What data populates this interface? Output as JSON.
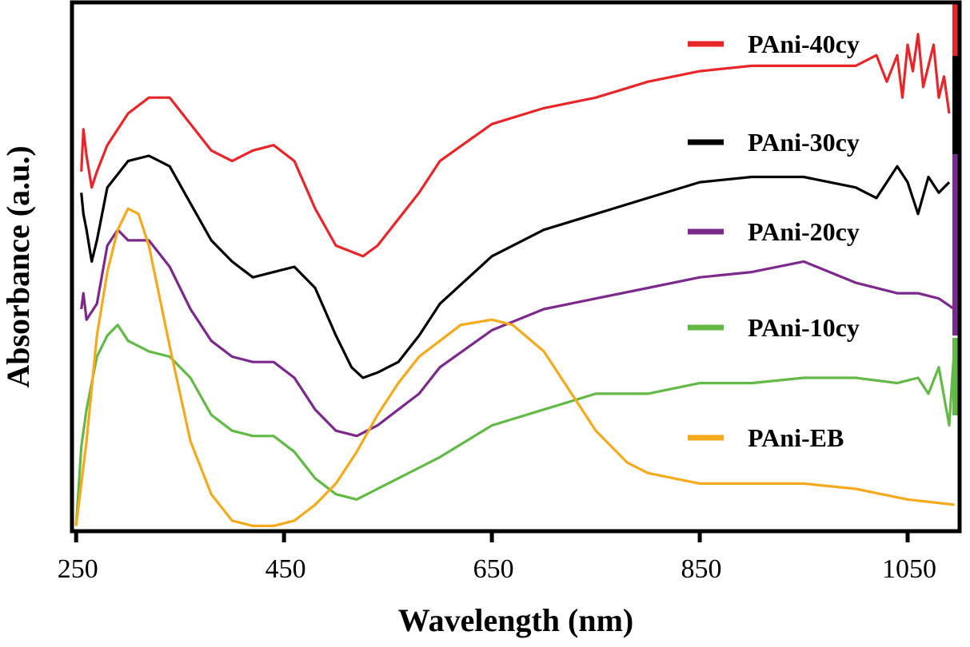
{
  "chart_data": {
    "type": "line",
    "title": "",
    "xlabel": "Wavelength (nm)",
    "ylabel": "Absorbance (a.u.)",
    "xlim": [
      246,
      1100
    ],
    "ylim": [
      0,
      100
    ],
    "xticks": [
      250,
      450,
      650,
      850,
      1050
    ],
    "xtick_labels": [
      "250",
      "450",
      "650",
      "850",
      "1050"
    ],
    "grid": false,
    "legend_position": "right",
    "series": [
      {
        "name": "PAni-40cy",
        "color": "#e8262a",
        "points": [
          [
            255,
            68
          ],
          [
            257,
            76
          ],
          [
            260,
            71
          ],
          [
            265,
            65
          ],
          [
            270,
            68
          ],
          [
            280,
            73
          ],
          [
            300,
            79
          ],
          [
            320,
            82
          ],
          [
            340,
            82
          ],
          [
            360,
            77
          ],
          [
            380,
            72
          ],
          [
            400,
            70
          ],
          [
            420,
            72
          ],
          [
            440,
            73
          ],
          [
            460,
            70
          ],
          [
            480,
            61
          ],
          [
            500,
            54
          ],
          [
            526,
            52
          ],
          [
            540,
            54
          ],
          [
            560,
            59
          ],
          [
            580,
            64
          ],
          [
            600,
            70
          ],
          [
            650,
            77
          ],
          [
            700,
            80
          ],
          [
            750,
            82
          ],
          [
            800,
            85
          ],
          [
            850,
            87
          ],
          [
            900,
            88
          ],
          [
            950,
            88
          ],
          [
            1000,
            88
          ],
          [
            1020,
            90
          ],
          [
            1030,
            85
          ],
          [
            1040,
            90
          ],
          [
            1045,
            82
          ],
          [
            1050,
            92
          ],
          [
            1055,
            87
          ],
          [
            1060,
            94
          ],
          [
            1065,
            84
          ],
          [
            1075,
            92
          ],
          [
            1080,
            82
          ],
          [
            1085,
            86
          ],
          [
            1090,
            79
          ]
        ]
      },
      {
        "name": "PAni-30cy",
        "color": "#000000",
        "points": [
          [
            255,
            64
          ],
          [
            257,
            60
          ],
          [
            260,
            57
          ],
          [
            265,
            51
          ],
          [
            270,
            55
          ],
          [
            280,
            65
          ],
          [
            300,
            70
          ],
          [
            320,
            71
          ],
          [
            340,
            69
          ],
          [
            360,
            62
          ],
          [
            380,
            55
          ],
          [
            400,
            51
          ],
          [
            420,
            48
          ],
          [
            440,
            49
          ],
          [
            460,
            50
          ],
          [
            480,
            46
          ],
          [
            500,
            37
          ],
          [
            515,
            31
          ],
          [
            526,
            29
          ],
          [
            540,
            30
          ],
          [
            560,
            32
          ],
          [
            580,
            37
          ],
          [
            600,
            43
          ],
          [
            650,
            52
          ],
          [
            700,
            57
          ],
          [
            750,
            60
          ],
          [
            800,
            63
          ],
          [
            850,
            66
          ],
          [
            900,
            67
          ],
          [
            950,
            67
          ],
          [
            1000,
            65
          ],
          [
            1020,
            63
          ],
          [
            1040,
            69
          ],
          [
            1050,
            66
          ],
          [
            1060,
            60
          ],
          [
            1070,
            67
          ],
          [
            1080,
            64
          ],
          [
            1090,
            66
          ]
        ]
      },
      {
        "name": "PAni-20cy",
        "color": "#7b2a8c",
        "points": [
          [
            255,
            42
          ],
          [
            257,
            45
          ],
          [
            260,
            40
          ],
          [
            270,
            43
          ],
          [
            280,
            54
          ],
          [
            290,
            57
          ],
          [
            300,
            55
          ],
          [
            320,
            55
          ],
          [
            340,
            50
          ],
          [
            360,
            42
          ],
          [
            380,
            36
          ],
          [
            400,
            33
          ],
          [
            420,
            32
          ],
          [
            440,
            32
          ],
          [
            460,
            29
          ],
          [
            480,
            23
          ],
          [
            500,
            19
          ],
          [
            520,
            18
          ],
          [
            540,
            20
          ],
          [
            560,
            23
          ],
          [
            580,
            26
          ],
          [
            600,
            31
          ],
          [
            650,
            38
          ],
          [
            700,
            42
          ],
          [
            750,
            44
          ],
          [
            800,
            46
          ],
          [
            850,
            48
          ],
          [
            900,
            49
          ],
          [
            950,
            51
          ],
          [
            1000,
            47
          ],
          [
            1040,
            45
          ],
          [
            1060,
            45
          ],
          [
            1080,
            44
          ],
          [
            1095,
            42
          ]
        ]
      },
      {
        "name": "PAni-10cy",
        "color": "#62b946",
        "points": [
          [
            250,
            1
          ],
          [
            255,
            16
          ],
          [
            260,
            23
          ],
          [
            270,
            33
          ],
          [
            280,
            37
          ],
          [
            290,
            39
          ],
          [
            300,
            36
          ],
          [
            320,
            34
          ],
          [
            340,
            33
          ],
          [
            360,
            29
          ],
          [
            380,
            22
          ],
          [
            400,
            19
          ],
          [
            420,
            18
          ],
          [
            440,
            18
          ],
          [
            460,
            15
          ],
          [
            480,
            10
          ],
          [
            500,
            7
          ],
          [
            520,
            6
          ],
          [
            540,
            8
          ],
          [
            560,
            10
          ],
          [
            600,
            14
          ],
          [
            650,
            20
          ],
          [
            700,
            23
          ],
          [
            750,
            26
          ],
          [
            800,
            26
          ],
          [
            850,
            28
          ],
          [
            900,
            28
          ],
          [
            950,
            29
          ],
          [
            1000,
            29
          ],
          [
            1040,
            28
          ],
          [
            1060,
            29
          ],
          [
            1070,
            26
          ],
          [
            1080,
            31
          ],
          [
            1090,
            20
          ],
          [
            1095,
            35
          ]
        ]
      },
      {
        "name": "PAni-EB",
        "color": "#f5a91d",
        "points": [
          [
            250,
            1
          ],
          [
            260,
            17
          ],
          [
            270,
            37
          ],
          [
            280,
            49
          ],
          [
            290,
            57
          ],
          [
            300,
            61
          ],
          [
            310,
            60
          ],
          [
            320,
            54
          ],
          [
            340,
            35
          ],
          [
            360,
            17
          ],
          [
            380,
            7
          ],
          [
            400,
            2
          ],
          [
            420,
            1
          ],
          [
            440,
            1
          ],
          [
            460,
            2
          ],
          [
            480,
            5
          ],
          [
            500,
            9
          ],
          [
            520,
            15
          ],
          [
            540,
            22
          ],
          [
            560,
            28
          ],
          [
            580,
            33
          ],
          [
            600,
            36
          ],
          [
            620,
            39
          ],
          [
            650,
            40
          ],
          [
            670,
            39
          ],
          [
            700,
            34
          ],
          [
            720,
            28
          ],
          [
            750,
            19
          ],
          [
            780,
            13
          ],
          [
            800,
            11
          ],
          [
            850,
            9
          ],
          [
            900,
            9
          ],
          [
            950,
            9
          ],
          [
            1000,
            8
          ],
          [
            1050,
            6
          ],
          [
            1095,
            5
          ]
        ]
      }
    ]
  }
}
